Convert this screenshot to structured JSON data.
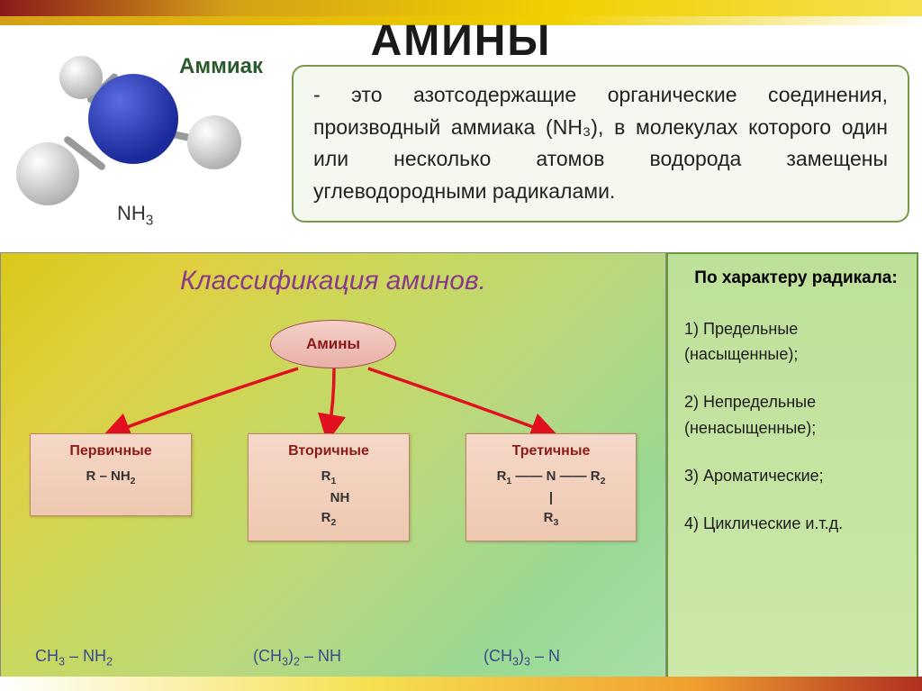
{
  "title": "АМИНЫ",
  "molecule": {
    "label": "Аммиак",
    "formula_base": "NH",
    "formula_sub": "3"
  },
  "definition": "- это азотсодержащие органические соединения, производный аммиака (NH₃), в молекулах которого один или несколько атомов водорода замещены углеводородными радикалами.",
  "classification": {
    "title": "Классификация аминов.",
    "root": "Амины",
    "leaves": [
      {
        "title": "Первичные",
        "formula_html": "R – NH<sub>2</sub>"
      },
      {
        "title": "Вторичные",
        "formula_html": "R<sub>1</sub><br>&nbsp;&nbsp;&nbsp;&nbsp;&nbsp;&nbsp;NH<br>R<sub>2</sub>"
      },
      {
        "title": "Третичные",
        "formula_html": "R<sub>1</sub> —— N —— R<sub>2</sub><br>|<br>R<sub>3</sub>"
      }
    ],
    "examples": [
      "CH<sub>3</sub> – NH<sub>2</sub>",
      "(CH<sub>3</sub>)<sub>2</sub> – NH",
      "(CH<sub>3</sub>)<sub>3</sub> – N"
    ],
    "arrows": {
      "color": "#e01020",
      "paths": [
        "M 330 128 Q 200 170 122 200",
        "M 370 128 Q 370 165 364 200",
        "M 408 128 Q 530 170 610 200"
      ]
    }
  },
  "right_panel": {
    "title": "По характеру радикала:",
    "items": [
      "Предельные (насыщенные);",
      "Непредельные (ненасыщенные);",
      "Ароматические;",
      "Циклические и.т.д."
    ]
  },
  "colors": {
    "accent_red": "#8b1a1a",
    "accent_purple": "#8a3a8a",
    "panel_border": "#6a9440"
  }
}
